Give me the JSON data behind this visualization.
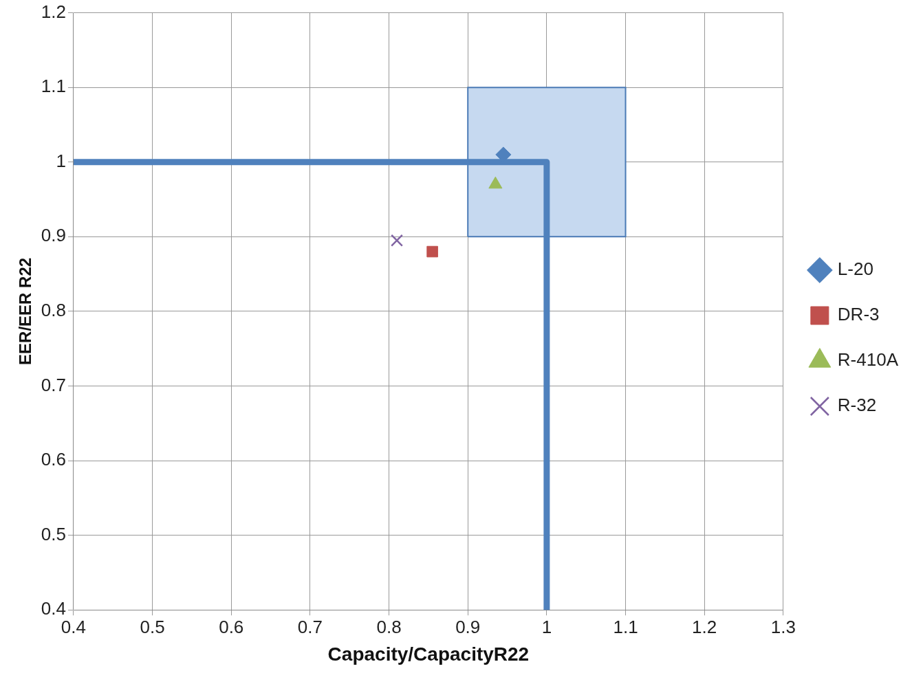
{
  "chart_data": {
    "type": "scatter",
    "xlabel": "Capacity/CapacityR22",
    "ylabel": "EER/EER R22",
    "xlim": [
      0.4,
      1.3
    ],
    "xticks": [
      0.4,
      0.5,
      0.6,
      0.7,
      0.8,
      0.9,
      1,
      1.1,
      1.2,
      1.3
    ],
    "ylim": [
      0.4,
      1.2
    ],
    "yticks": [
      0.4,
      0.5,
      0.6,
      0.7,
      0.8,
      0.9,
      1,
      1.1,
      1.2
    ],
    "grid": true,
    "legend": "right",
    "series": [
      {
        "type": "area",
        "color": "#c6d9f0",
        "x": [
          0.9,
          0.9,
          1.1,
          1.1,
          0.9
        ],
        "values": [
          0.9,
          1.1,
          1.1,
          0.9,
          0.9
        ],
        "marker": "none"
      },
      {
        "type": "line",
        "color": "#4f81bd",
        "x": [
          0.4,
          1,
          1
        ],
        "values": [
          1,
          1,
          0.4
        ],
        "marker": "none"
      },
      {
        "name": "L-20",
        "color": "#4f81bd",
        "x": [
          0.945
        ],
        "values": [
          1.01
        ],
        "marker": "diamond"
      },
      {
        "name": "DR-3",
        "color": "#c0504d",
        "x": [
          0.855
        ],
        "values": [
          0.88
        ],
        "marker": "square"
      },
      {
        "name": "R-410A",
        "color": "#9bbb59",
        "x": [
          0.935
        ],
        "values": [
          0.97
        ],
        "marker": "triangle"
      },
      {
        "name": "R-32",
        "color": "#8064a2",
        "x": [
          0.81
        ],
        "values": [
          0.895
        ],
        "marker": "cross"
      }
    ]
  }
}
